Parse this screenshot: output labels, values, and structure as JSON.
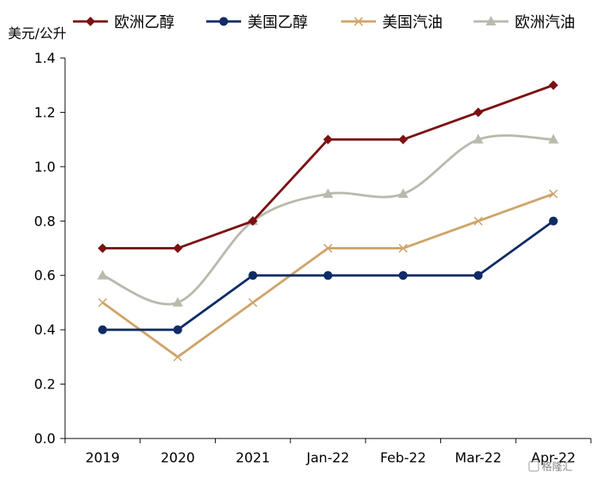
{
  "chart_data": {
    "type": "line",
    "title": "",
    "xlabel": "",
    "ylabel": "美元/公升",
    "categories": [
      "2019",
      "2020",
      "2021",
      "Jan-22",
      "Feb-22",
      "Mar-22",
      "Apr-22"
    ],
    "ylim": [
      0,
      1.4
    ],
    "yticks": [
      "0.0",
      "0.2",
      "0.4",
      "0.6",
      "0.8",
      "1.0",
      "1.2",
      "1.4"
    ],
    "grid": false,
    "legend_position": "top",
    "series": [
      {
        "name": "欧洲乙醇",
        "color": "#7B1113",
        "marker": "diamond",
        "smooth": false,
        "values": [
          0.7,
          0.7,
          0.8,
          1.1,
          1.1,
          1.2,
          1.3
        ]
      },
      {
        "name": "美国乙醇",
        "color": "#0F2C66",
        "marker": "circle",
        "smooth": false,
        "values": [
          0.4,
          0.4,
          0.6,
          0.6,
          0.6,
          0.6,
          0.8
        ]
      },
      {
        "name": "美国汽油",
        "color": "#CFA46A",
        "marker": "x",
        "smooth": false,
        "values": [
          0.5,
          0.3,
          0.5,
          0.7,
          0.7,
          0.8,
          0.9
        ]
      },
      {
        "name": "欧洲汽油",
        "color": "#B9B9AD",
        "marker": "triangle",
        "smooth": true,
        "values": [
          0.6,
          0.5,
          0.8,
          0.9,
          0.9,
          1.1,
          1.1
        ]
      }
    ]
  },
  "watermark": "格隆汇"
}
